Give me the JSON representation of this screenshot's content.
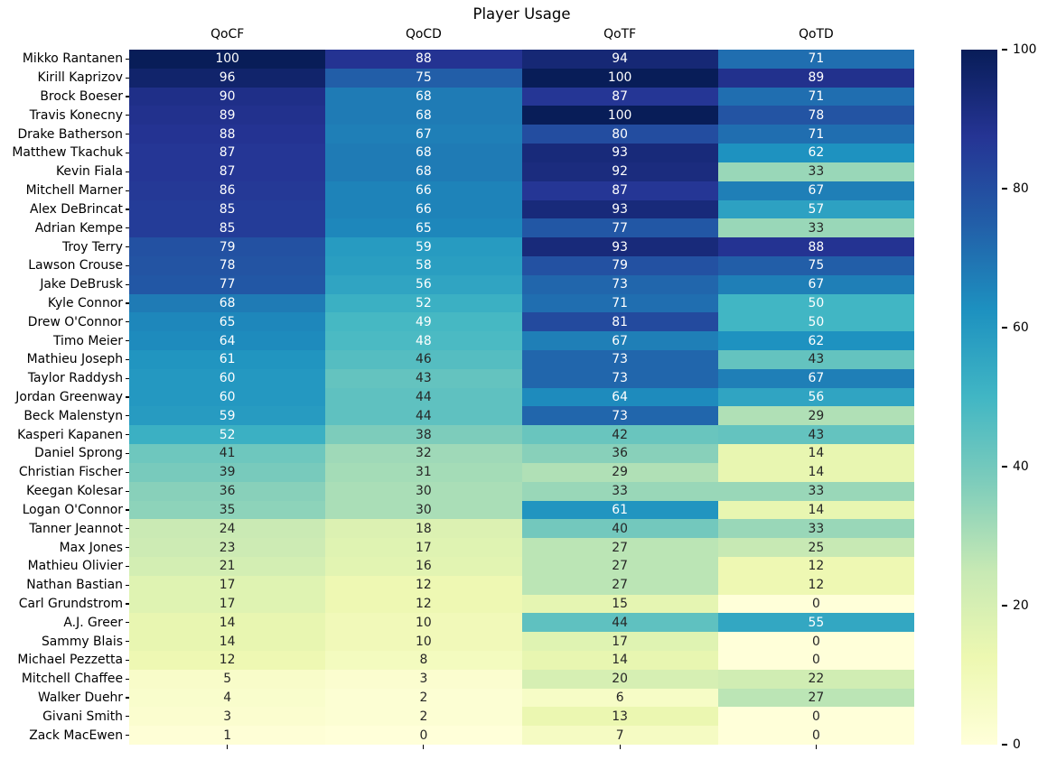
{
  "chart_data": {
    "type": "heatmap",
    "title": "Player Usage",
    "columns": [
      "QoCF",
      "QoCD",
      "QoTF",
      "QoTD"
    ],
    "rows": [
      "Mikko Rantanen",
      "Kirill Kaprizov",
      "Brock Boeser",
      "Travis Konecny",
      "Drake Batherson",
      "Matthew Tkachuk",
      "Kevin Fiala",
      "Mitchell Marner",
      "Alex DeBrincat",
      "Adrian Kempe",
      "Troy Terry",
      "Lawson Crouse",
      "Jake DeBrusk",
      "Kyle Connor",
      "Drew O'Connor",
      "Timo Meier",
      "Mathieu Joseph",
      "Taylor Raddysh",
      "Jordan Greenway",
      "Beck Malenstyn",
      "Kasperi Kapanen",
      "Daniel Sprong",
      "Christian Fischer",
      "Keegan Kolesar",
      "Logan O'Connor",
      "Tanner Jeannot",
      "Max Jones",
      "Mathieu Olivier",
      "Nathan Bastian",
      "Carl Grundstrom",
      "A.J. Greer",
      "Sammy Blais",
      "Michael Pezzetta",
      "Mitchell Chaffee",
      "Walker Duehr",
      "Givani Smith",
      "Zack MacEwen"
    ],
    "values": [
      [
        100,
        88,
        94,
        71
      ],
      [
        96,
        75,
        100,
        89
      ],
      [
        90,
        68,
        87,
        71
      ],
      [
        89,
        68,
        100,
        78
      ],
      [
        88,
        67,
        80,
        71
      ],
      [
        87,
        68,
        93,
        62
      ],
      [
        87,
        68,
        92,
        33
      ],
      [
        86,
        66,
        87,
        67
      ],
      [
        85,
        66,
        93,
        57
      ],
      [
        85,
        65,
        77,
        33
      ],
      [
        79,
        59,
        93,
        88
      ],
      [
        78,
        58,
        79,
        75
      ],
      [
        77,
        56,
        73,
        67
      ],
      [
        68,
        52,
        71,
        50
      ],
      [
        65,
        49,
        81,
        50
      ],
      [
        64,
        48,
        67,
        62
      ],
      [
        61,
        46,
        73,
        43
      ],
      [
        60,
        43,
        73,
        67
      ],
      [
        60,
        44,
        64,
        56
      ],
      [
        59,
        44,
        73,
        29
      ],
      [
        52,
        38,
        42,
        43
      ],
      [
        41,
        32,
        36,
        14
      ],
      [
        39,
        31,
        29,
        14
      ],
      [
        36,
        30,
        33,
        33
      ],
      [
        35,
        30,
        61,
        14
      ],
      [
        24,
        18,
        40,
        33
      ],
      [
        23,
        17,
        27,
        25
      ],
      [
        21,
        16,
        27,
        12
      ],
      [
        17,
        12,
        27,
        12
      ],
      [
        17,
        12,
        15,
        0
      ],
      [
        14,
        10,
        44,
        55
      ],
      [
        14,
        10,
        17,
        0
      ],
      [
        12,
        8,
        14,
        0
      ],
      [
        5,
        3,
        20,
        22
      ],
      [
        4,
        2,
        6,
        27
      ],
      [
        3,
        2,
        13,
        0
      ],
      [
        1,
        0,
        7,
        0
      ]
    ],
    "vmin": 0,
    "vmax": 100,
    "colorbar_ticks": [
      100,
      80,
      60,
      40,
      20,
      0
    ],
    "legend_position": "right-colorbar",
    "grid": false,
    "colormap": {
      "name": "YlGnBu-reversed-scale",
      "anchors": [
        "#ffffd9",
        "#edf8b1",
        "#c7e9b4",
        "#7fcdbb",
        "#41b6c4",
        "#1d91c0",
        "#225ea8",
        "#253494",
        "#081d58"
      ]
    },
    "annotation_text_colors": {
      "light": "#ffffff",
      "dark": "#262626"
    }
  }
}
